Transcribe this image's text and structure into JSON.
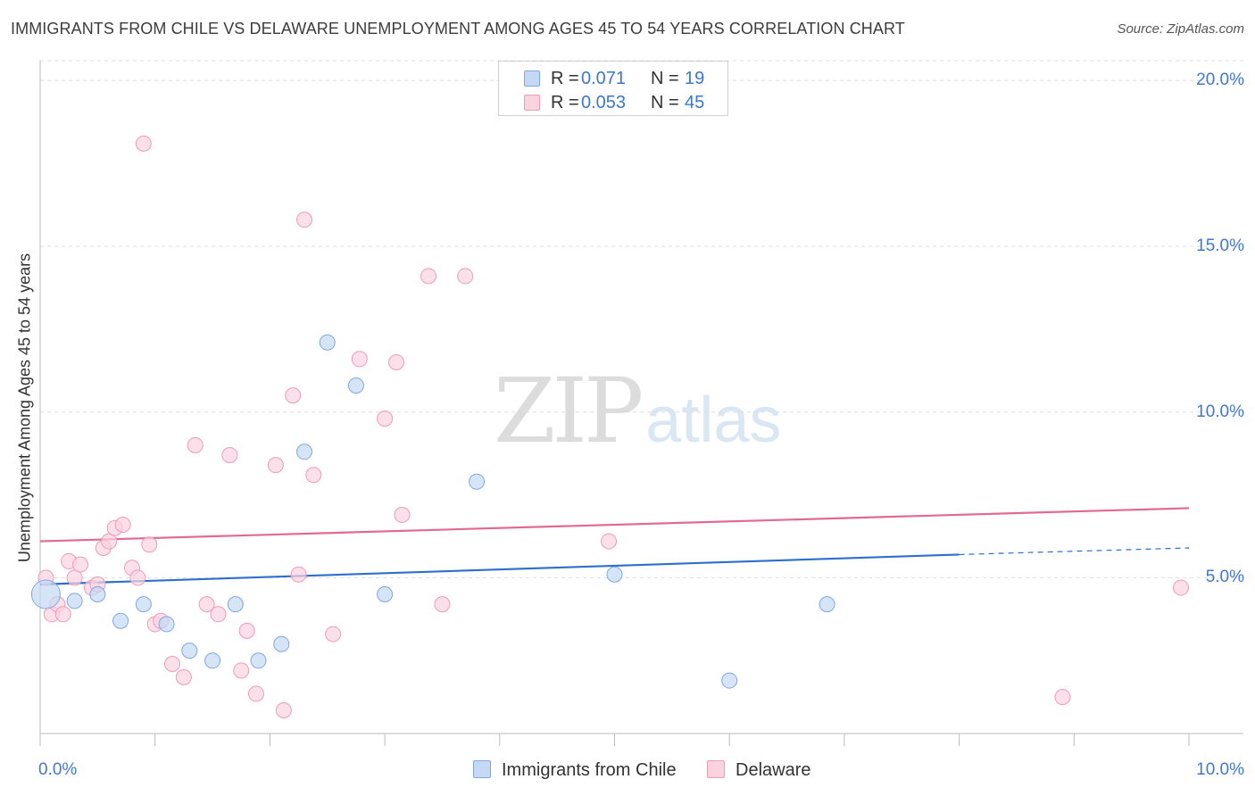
{
  "title": "IMMIGRANTS FROM CHILE VS DELAWARE UNEMPLOYMENT AMONG AGES 45 TO 54 YEARS CORRELATION CHART",
  "source": "Source: ZipAtlas.com",
  "watermark": {
    "zip": "ZIP",
    "atlas": "atlas"
  },
  "colors": {
    "chile_fill": "#c5d9f4",
    "chile_stroke": "#7fa8e0",
    "chile_line": "#2e6fce",
    "delaware_fill": "#fbd3df",
    "delaware_stroke": "#ee9cb6",
    "delaware_line": "#e26994",
    "value_text": "#3d78c8"
  },
  "legend_top": [
    {
      "r_label": "R =",
      "r_value": "0.071",
      "n_label": "N =",
      "n_value": "19"
    },
    {
      "r_label": "R =",
      "r_value": "0.053",
      "n_label": "N =",
      "n_value": "45"
    }
  ],
  "chart_data": {
    "type": "scatter",
    "title": "IMMIGRANTS FROM CHILE VS DELAWARE UNEMPLOYMENT AMONG AGES 45 TO 54 YEARS CORRELATION CHART",
    "xlabel": "",
    "ylabel": "Unemployment Among Ages 45 to 54 years",
    "xlim": [
      0,
      10
    ],
    "ylim": [
      0.3,
      20.6
    ],
    "x_tick_labels": [
      "0.0%",
      "10.0%"
    ],
    "y_ticks": [
      5,
      10,
      15,
      20
    ],
    "y_tick_labels": [
      "5.0%",
      "10.0%",
      "15.0%",
      "20.0%"
    ],
    "grid": true,
    "legend_position": "top-center",
    "series": [
      {
        "name": "Immigrants from Chile",
        "points": [
          [
            0.05,
            4.5
          ],
          [
            0.3,
            4.3
          ],
          [
            0.5,
            4.5
          ],
          [
            0.7,
            3.7
          ],
          [
            0.9,
            4.2
          ],
          [
            1.1,
            3.6
          ],
          [
            1.3,
            2.8
          ],
          [
            1.5,
            2.5
          ],
          [
            1.7,
            4.2
          ],
          [
            1.9,
            2.5
          ],
          [
            2.1,
            3.0
          ],
          [
            2.3,
            8.8
          ],
          [
            2.5,
            12.1
          ],
          [
            2.75,
            10.8
          ],
          [
            3.0,
            4.5
          ],
          [
            3.8,
            7.9
          ],
          [
            5.0,
            5.1
          ],
          [
            6.0,
            1.9
          ],
          [
            6.85,
            4.2
          ]
        ],
        "trend": {
          "x": [
            0.0,
            8.0
          ],
          "y": [
            4.8,
            5.7
          ]
        },
        "trend_dashed": {
          "x": [
            8.0,
            10.0
          ],
          "y": [
            5.7,
            5.9
          ]
        }
      },
      {
        "name": "Delaware",
        "points": [
          [
            0.05,
            5.0
          ],
          [
            0.1,
            3.9
          ],
          [
            0.15,
            4.2
          ],
          [
            0.2,
            3.9
          ],
          [
            0.25,
            5.5
          ],
          [
            0.3,
            5.0
          ],
          [
            0.35,
            5.4
          ],
          [
            0.45,
            4.7
          ],
          [
            0.5,
            4.8
          ],
          [
            0.55,
            5.9
          ],
          [
            0.6,
            6.1
          ],
          [
            0.65,
            6.5
          ],
          [
            0.72,
            6.6
          ],
          [
            0.8,
            5.3
          ],
          [
            0.85,
            5.0
          ],
          [
            0.9,
            18.1
          ],
          [
            0.95,
            6.0
          ],
          [
            1.0,
            3.6
          ],
          [
            1.05,
            3.7
          ],
          [
            1.15,
            2.4
          ],
          [
            1.25,
            2.0
          ],
          [
            1.35,
            9.0
          ],
          [
            1.45,
            4.2
          ],
          [
            1.55,
            3.9
          ],
          [
            1.65,
            8.7
          ],
          [
            1.75,
            2.2
          ],
          [
            1.8,
            3.4
          ],
          [
            1.88,
            1.5
          ],
          [
            2.05,
            8.4
          ],
          [
            2.12,
            1.0
          ],
          [
            2.2,
            10.5
          ],
          [
            2.25,
            5.1
          ],
          [
            2.3,
            15.8
          ],
          [
            2.38,
            8.1
          ],
          [
            2.55,
            3.3
          ],
          [
            2.78,
            11.6
          ],
          [
            3.0,
            9.8
          ],
          [
            3.1,
            11.5
          ],
          [
            3.15,
            6.9
          ],
          [
            3.38,
            14.1
          ],
          [
            3.5,
            4.2
          ],
          [
            3.7,
            14.1
          ],
          [
            4.95,
            6.1
          ],
          [
            8.9,
            1.4
          ],
          [
            9.93,
            4.7
          ]
        ],
        "trend": {
          "x": [
            0.0,
            10.0
          ],
          "y": [
            6.1,
            7.1
          ]
        }
      }
    ]
  },
  "bottom_legend": [
    "Immigrants from Chile",
    "Delaware"
  ]
}
